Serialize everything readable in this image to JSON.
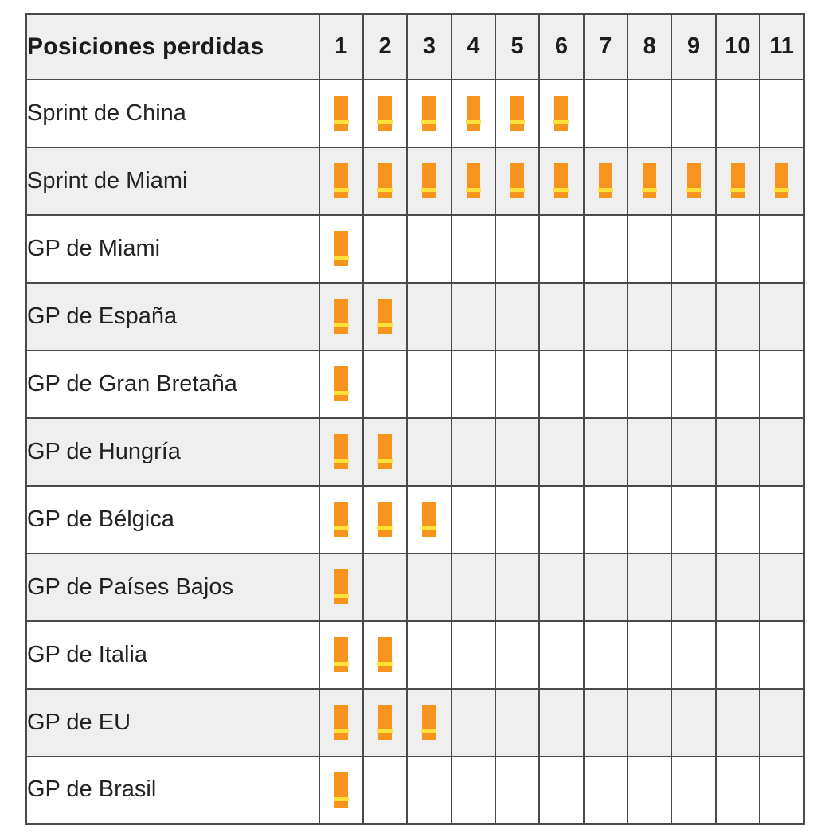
{
  "chart_data": {
    "type": "table",
    "title": "Posiciones perdidas",
    "columns": [
      "1",
      "2",
      "3",
      "4",
      "5",
      "6",
      "7",
      "8",
      "9",
      "10",
      "11"
    ],
    "categories": [
      "Sprint de China",
      "Sprint de Miami",
      "GP de Miami",
      "GP de España",
      "GP de Gran Bretaña",
      "GP de Hungría",
      "GP de Bélgica",
      "GP de Países Bajos",
      "GP de Italia",
      "GP de EU",
      "GP de Brasil"
    ],
    "values": [
      6,
      11,
      1,
      2,
      1,
      2,
      3,
      1,
      2,
      3,
      1
    ],
    "legend_position": "none",
    "grid": true,
    "xlim": [
      0,
      11
    ]
  },
  "table": {
    "header": {
      "title": "Posiciones perdidas",
      "columns": [
        "1",
        "2",
        "3",
        "4",
        "5",
        "6",
        "7",
        "8",
        "9",
        "10",
        "11"
      ]
    },
    "rows": [
      {
        "label": "Sprint de China",
        "count": 6
      },
      {
        "label": "Sprint de Miami",
        "count": 11
      },
      {
        "label": "GP de Miami",
        "count": 1
      },
      {
        "label": "GP de España",
        "count": 2
      },
      {
        "label": "GP de Gran Bretaña",
        "count": 1
      },
      {
        "label": "GP de Hungría",
        "count": 2
      },
      {
        "label": "GP de Bélgica",
        "count": 3
      },
      {
        "label": "GP de Países Bajos",
        "count": 1
      },
      {
        "label": "GP de Italia",
        "count": 2
      },
      {
        "label": "GP de EU",
        "count": 3
      },
      {
        "label": "GP de Brasil",
        "count": 1
      }
    ]
  },
  "icons": {
    "lost_position_icon": "orange-bar-with-yellow-stripe"
  },
  "colors": {
    "icon_orange": "#f7941e",
    "icon_yellow": "#ffe13b",
    "zebra_gray": "#efefef",
    "border_gray": "#4a4a4a",
    "header_text": "#1c1c1c",
    "body_text": "#222222"
  }
}
